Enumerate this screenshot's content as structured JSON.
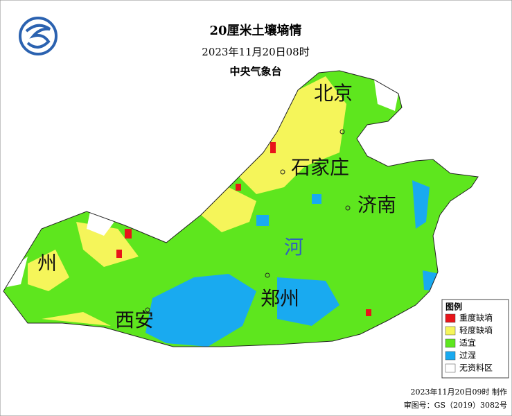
{
  "header": {
    "title": "20厘米土壤墒情",
    "subtitle": "2023年11月20日08时",
    "agency": "中央气象台"
  },
  "map": {
    "labels": [
      "北京",
      "石家庄",
      "济南",
      "河",
      "郑州",
      "西安",
      "州"
    ]
  },
  "legend": {
    "title": "图例",
    "items": [
      {
        "label": "重度缺墒",
        "color": "#e8141a"
      },
      {
        "label": "轻度缺墒",
        "color": "#f5f55a"
      },
      {
        "label": "适宜",
        "color": "#5ee61e"
      },
      {
        "label": "过湿",
        "color": "#19aaf0"
      },
      {
        "label": "无资料区",
        "color": "#ffffff"
      }
    ]
  },
  "footer": {
    "made": "2023年11月20日09时 制作",
    "approval": "审图号：GS（2019）3082号"
  }
}
